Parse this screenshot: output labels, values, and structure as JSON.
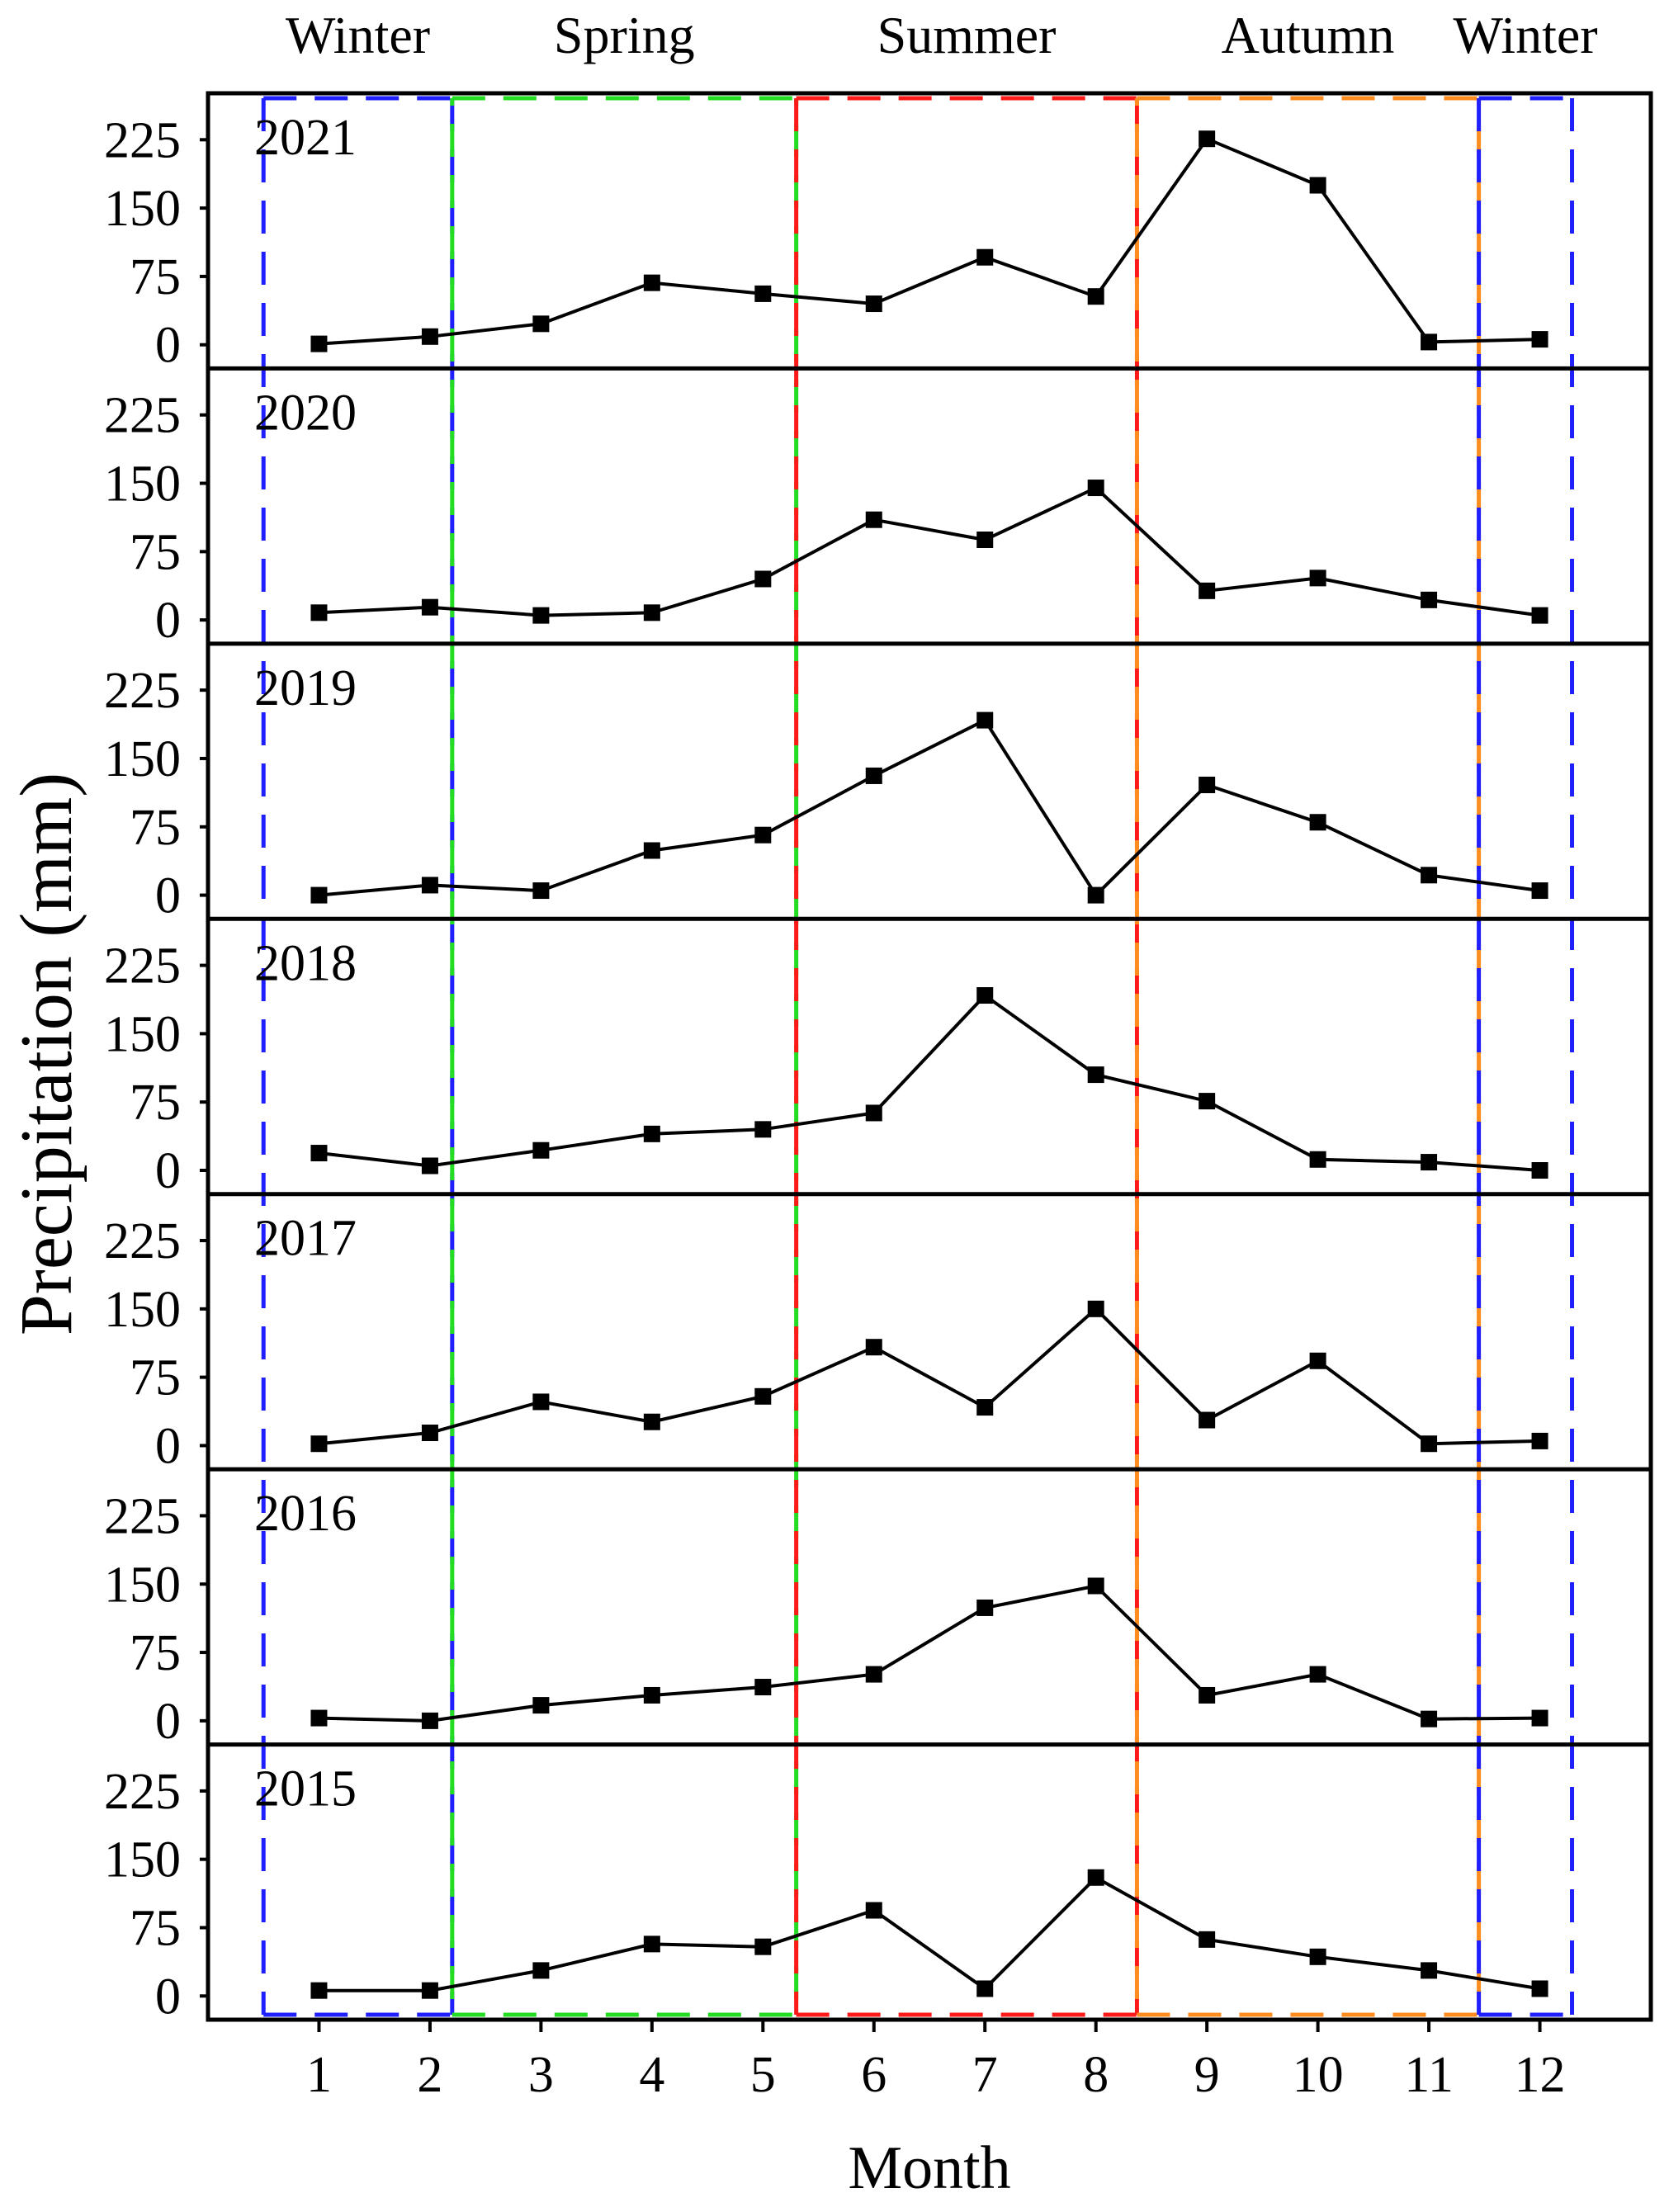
{
  "chart_data": {
    "type": "line",
    "xlabel": "Month",
    "ylabel": "Precipitation (mm)",
    "x": [
      1,
      2,
      3,
      4,
      5,
      6,
      7,
      8,
      9,
      10,
      11,
      12
    ],
    "xtick_labels": [
      "1",
      "2",
      "3",
      "4",
      "5",
      "6",
      "7",
      "8",
      "9",
      "10",
      "11",
      "12"
    ],
    "xlim": [
      0,
      13
    ],
    "ylim": [
      -26,
      276
    ],
    "yticks": [
      0,
      75,
      150,
      225
    ],
    "ytick_labels": [
      "0",
      "75",
      "150",
      "225"
    ],
    "line_color": "#000000",
    "panels": [
      {
        "label": "2021",
        "values": [
          1,
          9,
          23,
          68,
          56,
          45,
          96,
          53,
          226,
          175,
          3,
          6
        ]
      },
      {
        "label": "2020",
        "values": [
          8,
          14,
          5,
          8,
          45,
          110,
          88,
          145,
          32,
          46,
          22,
          5
        ]
      },
      {
        "label": "2019",
        "values": [
          0,
          11,
          5,
          49,
          66,
          131,
          192,
          0,
          121,
          80,
          22,
          5
        ]
      },
      {
        "label": "2018",
        "values": [
          19,
          5,
          22,
          40,
          45,
          63,
          192,
          105,
          76,
          12,
          9,
          0
        ]
      },
      {
        "label": "2017",
        "values": [
          2,
          14,
          48,
          26,
          54,
          108,
          42,
          150,
          28,
          93,
          2,
          5
        ]
      },
      {
        "label": "2016",
        "values": [
          3,
          0,
          17,
          28,
          37,
          51,
          124,
          148,
          28,
          51,
          2,
          3
        ]
      },
      {
        "label": "2015",
        "values": [
          6,
          6,
          28,
          57,
          54,
          94,
          8,
          130,
          62,
          43,
          28,
          8
        ]
      }
    ],
    "seasons": [
      {
        "name": "Winter",
        "span": [
          0.5,
          2.2
        ],
        "color": "#2020ff"
      },
      {
        "name": "Spring",
        "span": [
          2.2,
          5.3
        ],
        "color": "#22dd22"
      },
      {
        "name": "Summer",
        "span": [
          5.3,
          8.37
        ],
        "color": "#ff1a1a"
      },
      {
        "name": "Autumn",
        "span": [
          8.37,
          11.45
        ],
        "color": "#ff8c1f"
      },
      {
        "name": "Winter",
        "span": [
          11.45,
          12.29
        ],
        "color": "#2020ff"
      }
    ]
  }
}
